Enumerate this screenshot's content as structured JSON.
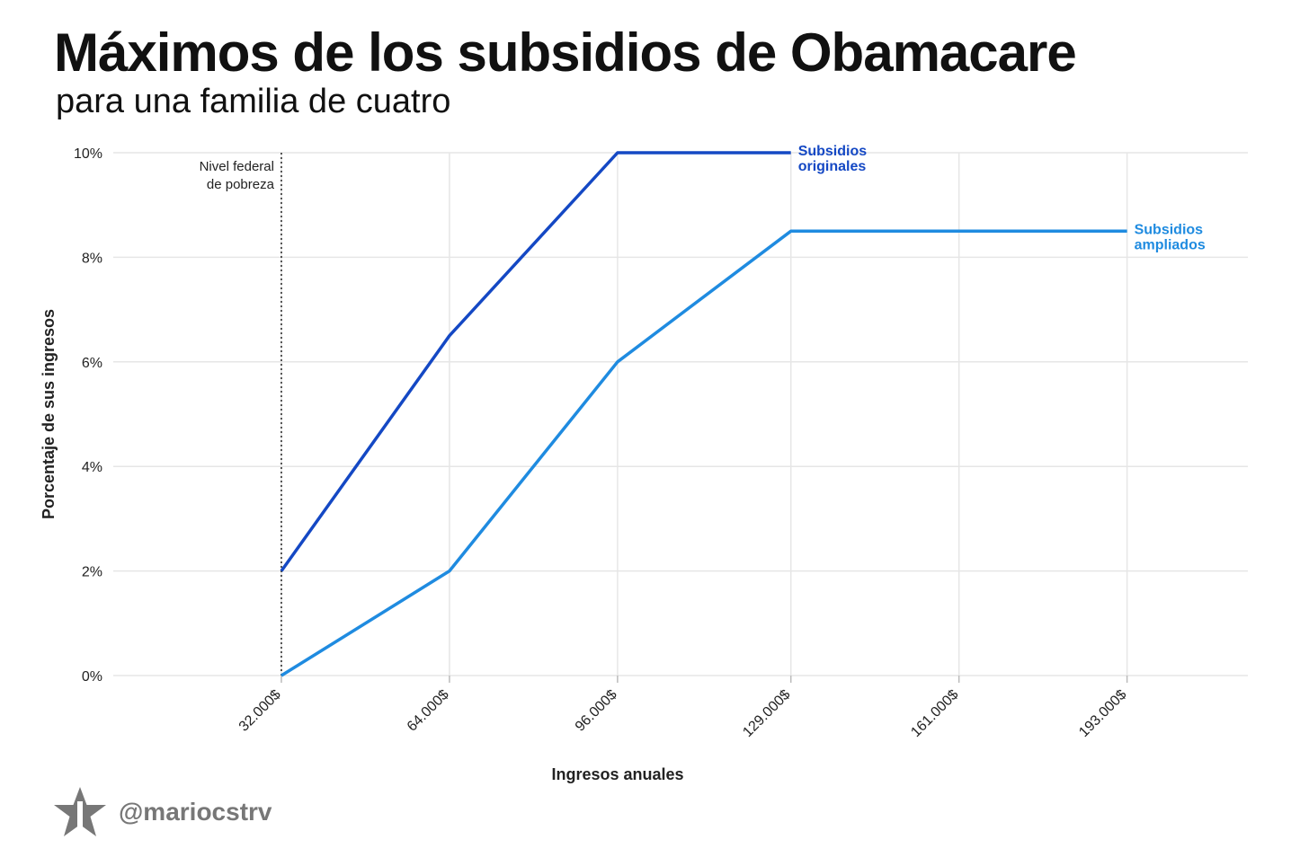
{
  "title": "Máximos de los subsidios de Obamacare",
  "subtitle": "para una familia de cuatro",
  "footer": {
    "handle": "@mariocstrv",
    "logo_icon": "star-logo-icon",
    "logo_color": "#777777"
  },
  "chart_data": {
    "type": "line",
    "xlabel": "Ingresos anuales",
    "ylabel": "Porcentaje de sus ingresos",
    "xlim": [
      0,
      216000
    ],
    "ylim": [
      0,
      10
    ],
    "x_ticks": [
      32000,
      64000,
      96000,
      129000,
      161000,
      193000
    ],
    "x_tick_labels": [
      "32.000$",
      "64.000$",
      "96.000$",
      "129.000$",
      "161.000$",
      "193.000$"
    ],
    "y_ticks": [
      0,
      2,
      4,
      6,
      8,
      10
    ],
    "y_tick_labels": [
      "0%",
      "2%",
      "4%",
      "6%",
      "8%",
      "10%"
    ],
    "grid": true,
    "series": [
      {
        "name": "Subsidios originales",
        "label_lines": [
          "Subsidios",
          "originales"
        ],
        "color": "#1448c4",
        "x": [
          32000,
          64000,
          96000,
          129000
        ],
        "y": [
          2,
          6.5,
          10,
          10
        ]
      },
      {
        "name": "Subsidios ampliados",
        "label_lines": [
          "Subsidios",
          "ampliados"
        ],
        "color": "#1f8be0",
        "x": [
          32000,
          64000,
          96000,
          129000,
          193000
        ],
        "y": [
          0,
          2,
          6,
          8.5,
          8.5
        ]
      }
    ],
    "annotations": [
      {
        "type": "vline",
        "x": 32000,
        "label_lines": [
          "Nivel federal",
          "de pobreza"
        ]
      }
    ]
  }
}
